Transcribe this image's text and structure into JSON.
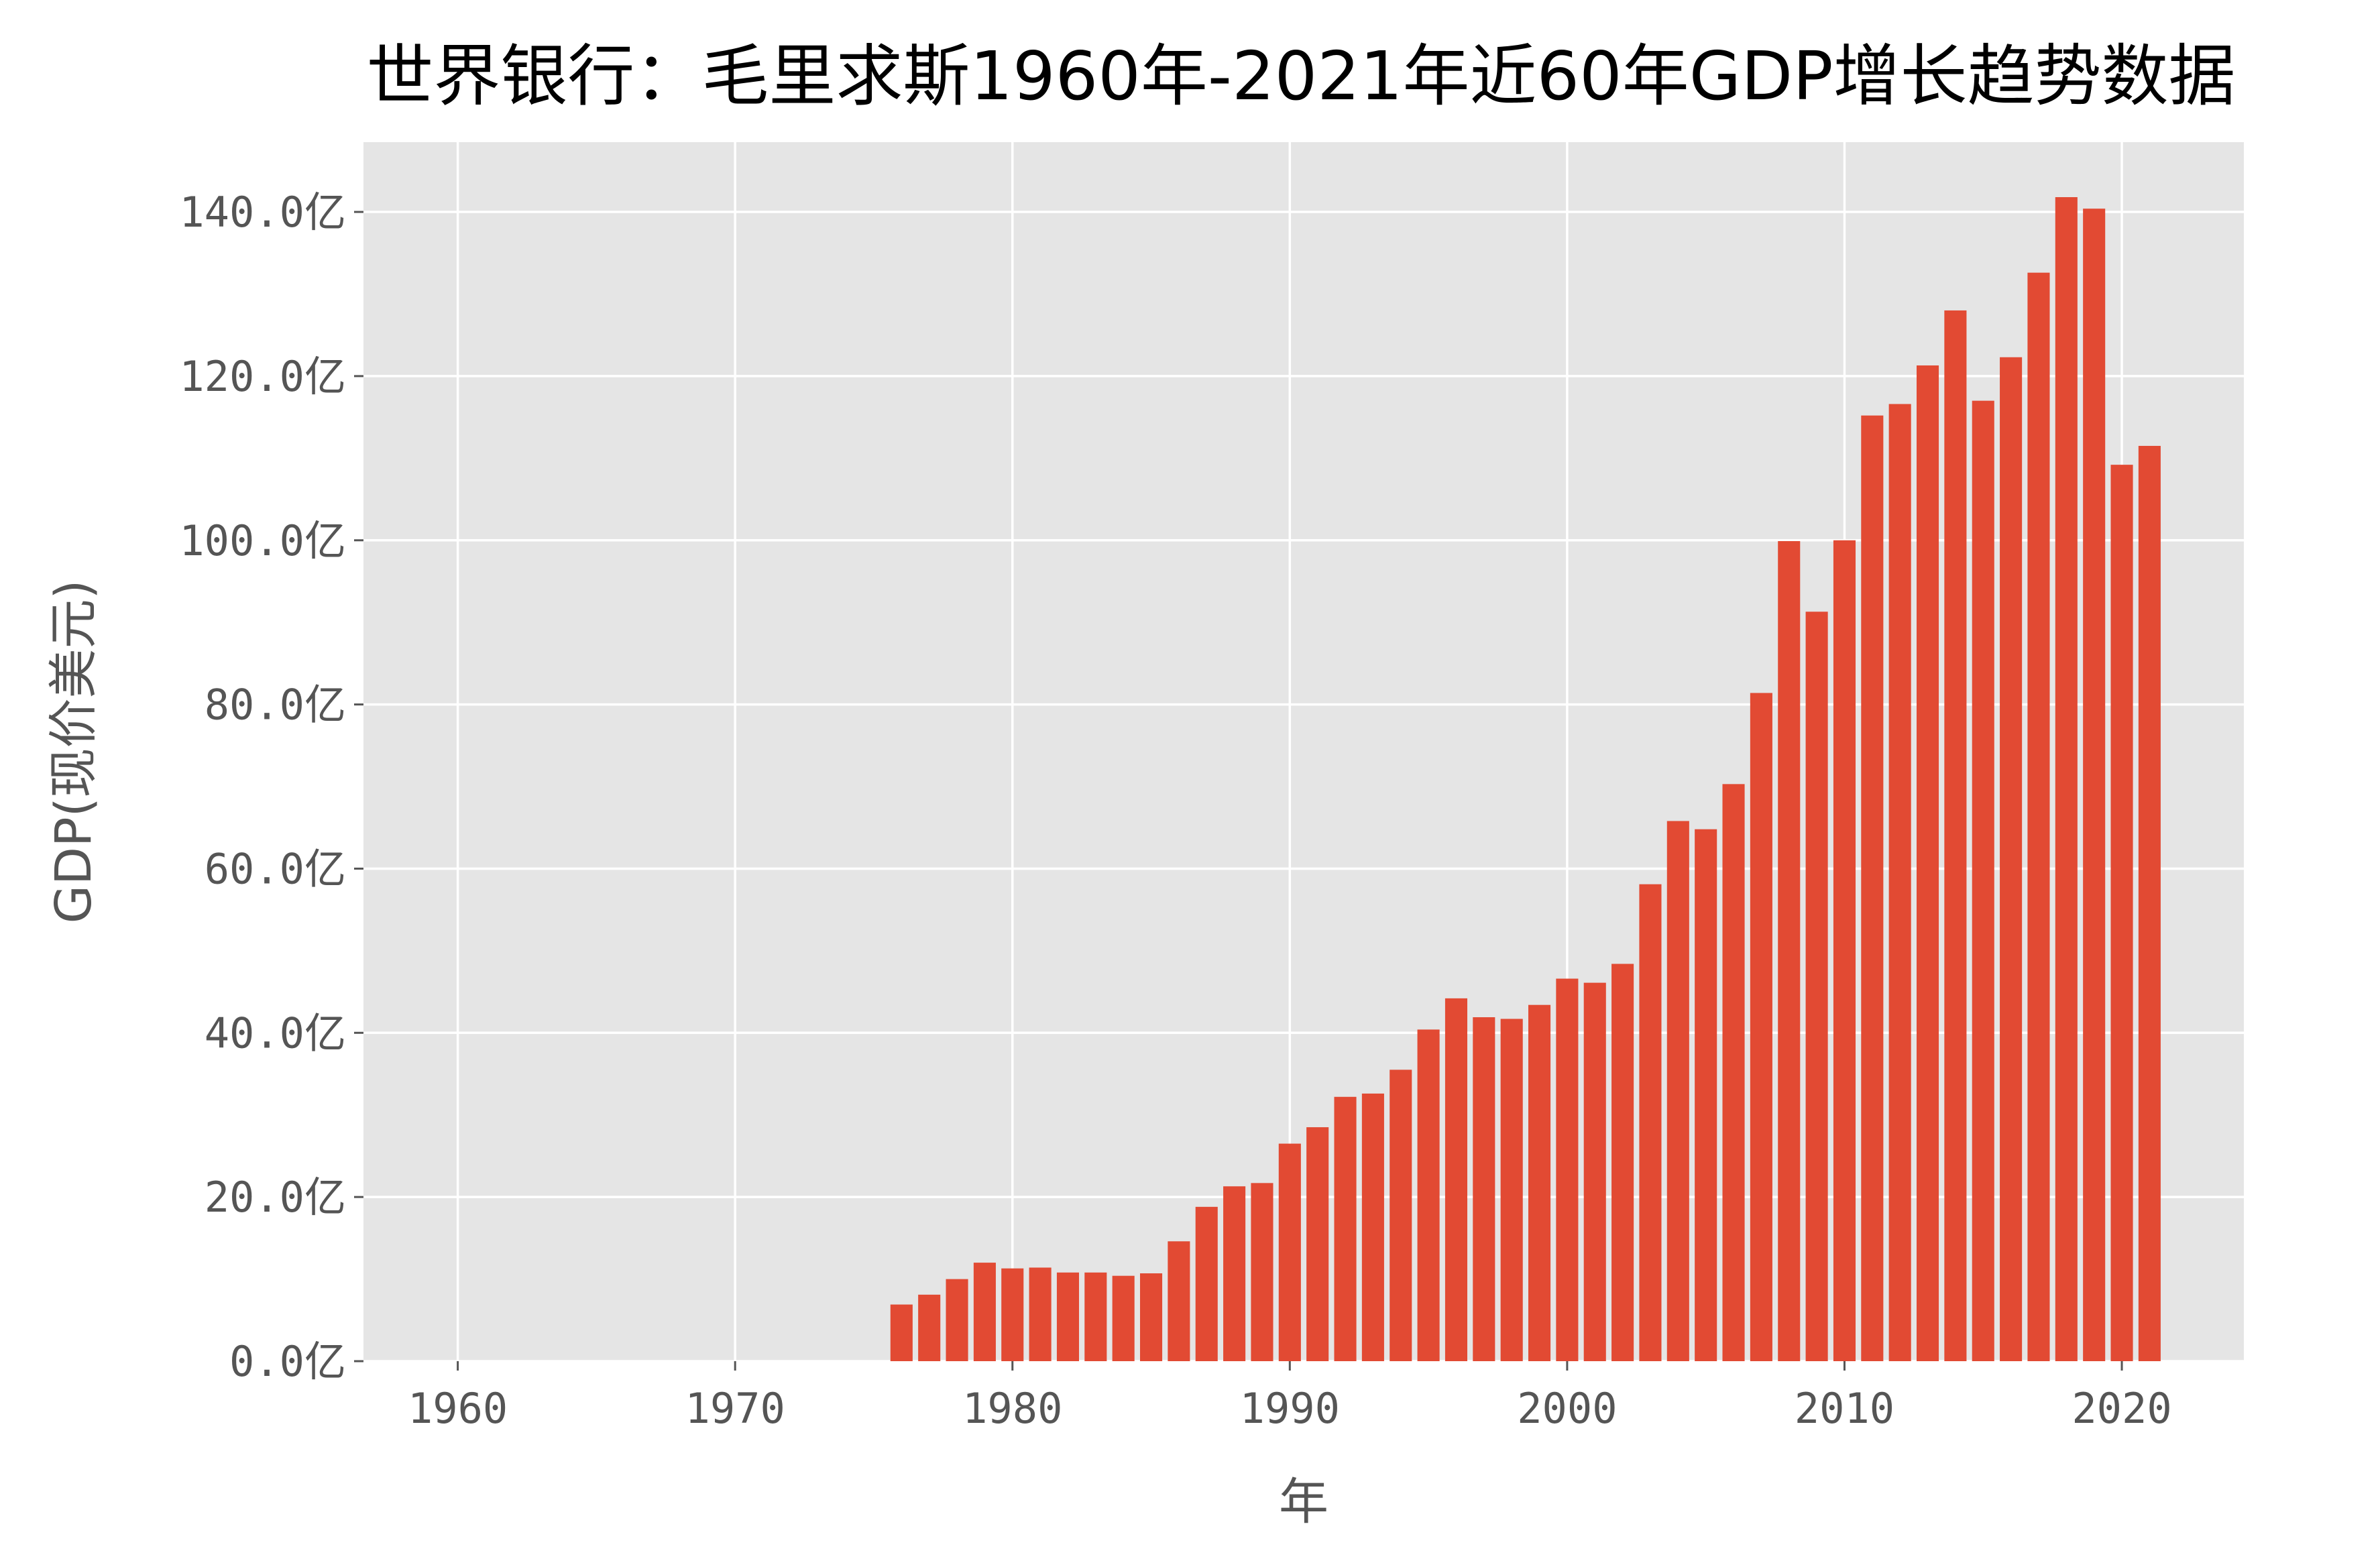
{
  "chart_data": {
    "type": "bar",
    "title": "世界银行：毛里求斯1960年-2021年近60年GDP增长趋势数据",
    "xlabel": "年",
    "ylabel": "GDP(现价美元)",
    "x_ticks": [
      1960,
      1970,
      1980,
      1990,
      2000,
      2010,
      2020
    ],
    "y_ticks": [
      0,
      20,
      40,
      60,
      80,
      100,
      120,
      140
    ],
    "y_tick_suffix": "亿",
    "y_unit": "亿美元",
    "xlim": [
      1956.6,
      2024.4
    ],
    "ylim": [
      0,
      148.5
    ],
    "grid": true,
    "bar_color": "#e24a33",
    "background_color": "#e5e5e5",
    "grid_color": "#ffffff",
    "x": [
      1976,
      1977,
      1978,
      1979,
      1980,
      1981,
      1982,
      1983,
      1984,
      1985,
      1986,
      1987,
      1988,
      1989,
      1990,
      1991,
      1992,
      1993,
      1994,
      1995,
      1996,
      1997,
      1998,
      1999,
      2000,
      2001,
      2002,
      2003,
      2004,
      2005,
      2006,
      2007,
      2008,
      2009,
      2010,
      2011,
      2012,
      2013,
      2014,
      2015,
      2016,
      2017,
      2018,
      2019,
      2020,
      2021
    ],
    "values": [
      6.9,
      8.1,
      10.0,
      12.0,
      11.3,
      11.4,
      10.8,
      10.8,
      10.4,
      10.7,
      14.6,
      18.8,
      21.3,
      21.7,
      26.5,
      28.5,
      32.2,
      32.6,
      35.5,
      40.4,
      44.2,
      41.9,
      41.7,
      43.4,
      46.6,
      46.1,
      48.4,
      58.1,
      65.8,
      64.8,
      70.3,
      81.4,
      99.9,
      91.3,
      100.0,
      115.2,
      116.6,
      121.3,
      128.0,
      117.0,
      122.3,
      132.6,
      141.8,
      140.4,
      109.2,
      111.5
    ]
  }
}
